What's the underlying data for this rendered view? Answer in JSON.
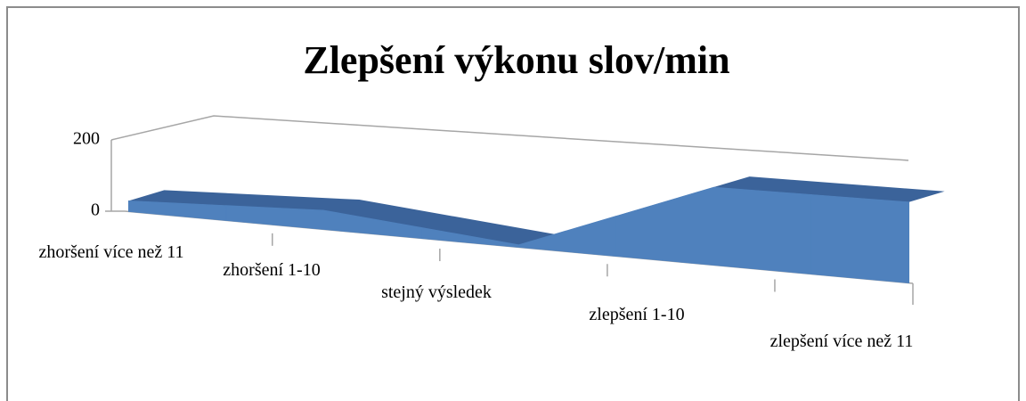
{
  "chart_data": {
    "type": "area3d",
    "title": "Zlepšení výkonu slov/min",
    "categories": [
      "zhoršení více než 11",
      "zhoršení 1-10",
      "stejný výsledek",
      "zlepšení 1-10",
      "zlepšení více než 11"
    ],
    "values": [
      30,
      45,
      5,
      140,
      130
    ],
    "color": "#4f81bd",
    "ylim": [
      0,
      200
    ],
    "yticks": [
      0,
      200
    ],
    "grid": true
  }
}
